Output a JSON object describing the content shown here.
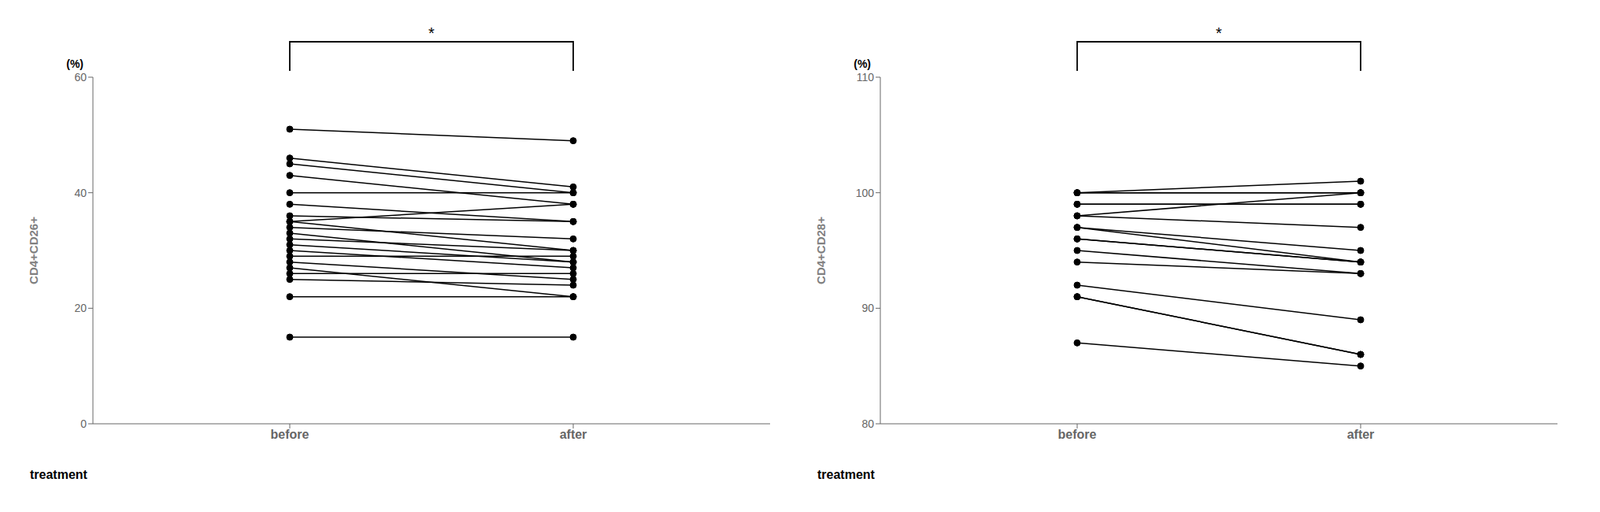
{
  "chart_data": [
    {
      "type": "line",
      "ylabel": "CD4+CD26+",
      "xlabel": "treatment",
      "categories": [
        "before",
        "after"
      ],
      "series": [
        {
          "values": [
            51,
            49
          ]
        },
        {
          "values": [
            46,
            41
          ]
        },
        {
          "values": [
            45,
            40
          ]
        },
        {
          "values": [
            43,
            38
          ]
        },
        {
          "values": [
            40,
            40
          ]
        },
        {
          "values": [
            38,
            35
          ]
        },
        {
          "values": [
            36,
            35
          ]
        },
        {
          "values": [
            35,
            38
          ]
        },
        {
          "values": [
            35,
            30
          ]
        },
        {
          "values": [
            34,
            32
          ]
        },
        {
          "values": [
            33,
            28
          ]
        },
        {
          "values": [
            32,
            30
          ]
        },
        {
          "values": [
            31,
            28
          ]
        },
        {
          "values": [
            30,
            27
          ]
        },
        {
          "values": [
            29,
            29
          ]
        },
        {
          "values": [
            28,
            25
          ]
        },
        {
          "values": [
            27,
            22
          ]
        },
        {
          "values": [
            26,
            26
          ]
        },
        {
          "values": [
            25,
            24
          ]
        },
        {
          "values": [
            22,
            22
          ]
        },
        {
          "values": [
            15,
            15
          ]
        }
      ],
      "color": "#000000",
      "marker": "circle",
      "ylim": [
        0,
        60
      ],
      "yticks": [
        0,
        20,
        40,
        60
      ],
      "grid": false,
      "annotations": [
        {
          "text": "(%)"
        },
        {
          "text": "*",
          "between": [
            "before",
            "after"
          ]
        }
      ]
    },
    {
      "type": "line",
      "ylabel": "CD4+CD28+",
      "xlabel": "treatment",
      "categories": [
        "before",
        "after"
      ],
      "series": [
        {
          "values": [
            100,
            101
          ]
        },
        {
          "values": [
            100,
            100
          ]
        },
        {
          "values": [
            100,
            100
          ]
        },
        {
          "values": [
            99,
            99
          ]
        },
        {
          "values": [
            99,
            99
          ]
        },
        {
          "values": [
            98,
            100
          ]
        },
        {
          "values": [
            98,
            97
          ]
        },
        {
          "values": [
            97,
            95
          ]
        },
        {
          "values": [
            97,
            94
          ]
        },
        {
          "values": [
            96,
            94
          ]
        },
        {
          "values": [
            96,
            94
          ]
        },
        {
          "values": [
            95,
            93
          ]
        },
        {
          "values": [
            94,
            93
          ]
        },
        {
          "values": [
            92,
            89
          ]
        },
        {
          "values": [
            91,
            86
          ]
        },
        {
          "values": [
            91,
            86
          ]
        },
        {
          "values": [
            87,
            85
          ]
        }
      ],
      "color": "#000000",
      "marker": "circle",
      "ylim": [
        80,
        110
      ],
      "yticks": [
        80,
        90,
        100,
        110
      ],
      "grid": false,
      "annotations": [
        {
          "text": "(%)"
        },
        {
          "text": "*",
          "between": [
            "before",
            "after"
          ]
        }
      ]
    }
  ]
}
